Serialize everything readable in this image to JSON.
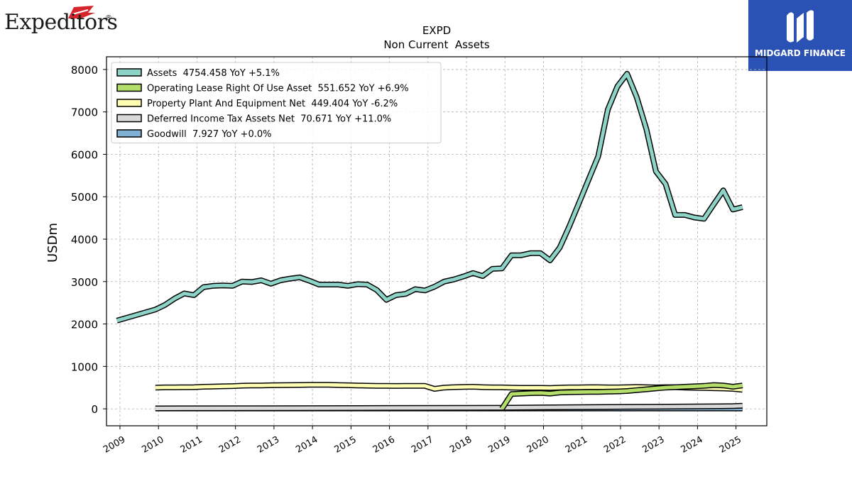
{
  "branding": {
    "company_logo_text": "Expeditors",
    "company_logo_mark": "®",
    "publisher": "MIDGARD FINANCE"
  },
  "chart_data": {
    "type": "line",
    "title": "EXPD",
    "subtitle": "Non Current  Assets",
    "ylabel": "USDm",
    "xlabel": "",
    "ylim": [
      -400,
      8300
    ],
    "xlim": [
      2008.65,
      2025.8
    ],
    "yticks": [
      0,
      1000,
      2000,
      3000,
      4000,
      5000,
      6000,
      7000,
      8000
    ],
    "xticks": [
      2009,
      2010,
      2011,
      2012,
      2013,
      2014,
      2015,
      2016,
      2017,
      2018,
      2019,
      2020,
      2021,
      2022,
      2023,
      2024,
      2025
    ],
    "grid": true,
    "legend_position": "top-left",
    "series": [
      {
        "name": "Assets",
        "legend_label": "Assets  4754.458 YoY +5.1%",
        "color": "#8dd3c7",
        "x": [
          2008.92,
          2009.92,
          2010.17,
          2010.42,
          2010.67,
          2010.92,
          2011.17,
          2011.42,
          2011.67,
          2011.92,
          2012.17,
          2012.42,
          2012.67,
          2012.92,
          2013.17,
          2013.42,
          2013.67,
          2013.92,
          2014.17,
          2014.42,
          2014.67,
          2014.92,
          2015.17,
          2015.42,
          2015.67,
          2015.92,
          2016.17,
          2016.42,
          2016.67,
          2016.92,
          2017.17,
          2017.42,
          2017.67,
          2017.92,
          2018.17,
          2018.42,
          2018.67,
          2018.92,
          2019.17,
          2019.42,
          2019.67,
          2019.92,
          2020.17,
          2020.42,
          2020.67,
          2020.92,
          2021.17,
          2021.42,
          2021.67,
          2021.92,
          2022.17,
          2022.42,
          2022.67,
          2022.92,
          2023.17,
          2023.42,
          2023.67,
          2023.92,
          2024.17,
          2024.42,
          2024.67,
          2024.92,
          2025.17
        ],
        "values": [
          2080,
          2340,
          2450,
          2600,
          2720,
          2680,
          2870,
          2900,
          2910,
          2900,
          3000,
          2990,
          3030,
          2950,
          3030,
          3070,
          3100,
          3020,
          2930,
          2930,
          2930,
          2900,
          2940,
          2930,
          2800,
          2570,
          2680,
          2710,
          2820,
          2790,
          2880,
          3000,
          3050,
          3120,
          3200,
          3130,
          3300,
          3310,
          3620,
          3620,
          3670,
          3670,
          3500,
          3800,
          4300,
          4850,
          5400,
          5950,
          7050,
          7600,
          7900,
          7350,
          6600,
          5600,
          5300,
          4570,
          4570,
          4510,
          4480,
          4820,
          5150,
          4700,
          4754
        ]
      },
      {
        "name": "Operating Lease Right Of Use Asset",
        "legend_label": "Operating Lease Right Of Use Asset  551.652 YoY +6.9%",
        "color": "#b3de69",
        "x": [
          2018.92,
          2019.17,
          2019.42,
          2019.67,
          2019.92,
          2020.17,
          2020.42,
          2020.67,
          2020.92,
          2021.17,
          2021.42,
          2021.67,
          2021.92,
          2022.17,
          2022.42,
          2022.67,
          2022.92,
          2023.17,
          2023.42,
          2023.67,
          2023.92,
          2024.17,
          2024.42,
          2024.67,
          2024.92,
          2025.17
        ],
        "values": [
          0,
          350,
          360,
          370,
          375,
          360,
          385,
          390,
          395,
          400,
          400,
          405,
          410,
          420,
          440,
          460,
          480,
          500,
          510,
          520,
          530,
          540,
          560,
          550,
          520,
          551
        ]
      },
      {
        "name": "Property Plant And Equipment Net",
        "legend_label": "Property Plant And Equipment Net  449.404 YoY -6.2%",
        "color": "#ffffb3",
        "x": [
          2009.92,
          2010.17,
          2010.42,
          2010.67,
          2010.92,
          2011.17,
          2011.42,
          2011.67,
          2011.92,
          2012.17,
          2012.42,
          2012.67,
          2012.92,
          2013.17,
          2013.42,
          2013.67,
          2013.92,
          2014.17,
          2014.42,
          2014.67,
          2014.92,
          2015.17,
          2015.42,
          2015.67,
          2015.92,
          2016.17,
          2016.42,
          2016.67,
          2016.92,
          2017.17,
          2017.42,
          2017.67,
          2017.92,
          2018.17,
          2018.42,
          2018.67,
          2018.92,
          2019.17,
          2019.42,
          2019.67,
          2019.92,
          2020.17,
          2020.42,
          2020.67,
          2020.92,
          2021.17,
          2021.42,
          2021.67,
          2021.92,
          2022.17,
          2022.42,
          2022.67,
          2022.92,
          2023.17,
          2023.42,
          2023.67,
          2023.92,
          2024.17,
          2024.42,
          2024.67,
          2024.92,
          2025.17
        ],
        "values": [
          500,
          505,
          505,
          508,
          510,
          520,
          525,
          530,
          535,
          545,
          550,
          550,
          555,
          558,
          560,
          562,
          565,
          565,
          565,
          560,
          555,
          550,
          545,
          540,
          540,
          538,
          540,
          542,
          540,
          470,
          500,
          510,
          515,
          520,
          510,
          505,
          505,
          500,
          495,
          495,
          495,
          490,
          500,
          505,
          505,
          510,
          510,
          505,
          505,
          510,
          515,
          510,
          505,
          510,
          510,
          500,
          495,
          490,
          485,
          480,
          470,
          449
        ]
      },
      {
        "name": "Deferred Income Tax Assets Net",
        "legend_label": "Deferred Income Tax Assets Net  70.671 YoY +11.0%",
        "color": "#d9d9d9",
        "x": [
          2009.92,
          2012.92,
          2015.92,
          2018.92,
          2020.92,
          2021.92,
          2022.92,
          2023.92,
          2024.92,
          2025.17
        ],
        "values": [
          10,
          15,
          20,
          25,
          40,
          45,
          50,
          55,
          64,
          71
        ]
      },
      {
        "name": "Goodwill",
        "legend_label": "Goodwill  7.927 YoY +0.0%",
        "color": "#80b1d3",
        "x": [
          2009.92,
          2025.17
        ],
        "values": [
          7.927,
          7.927
        ]
      }
    ]
  }
}
